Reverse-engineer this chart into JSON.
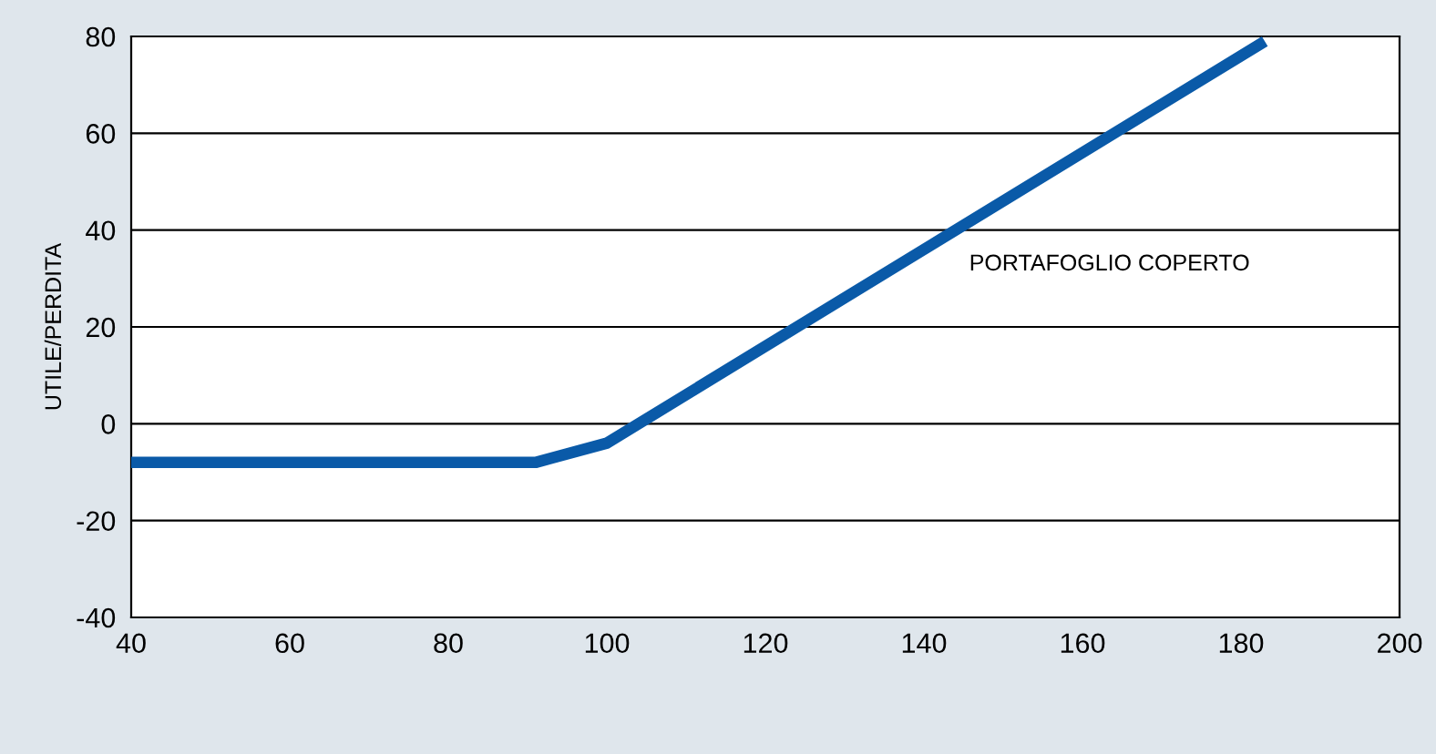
{
  "chart_data": {
    "type": "line",
    "ylabel": "UTILE/PERDITA",
    "x": [
      40,
      91,
      100,
      183
    ],
    "series": [
      {
        "name": "PORTAFOGLIO COPERTO",
        "color": "#0a5aa8",
        "values": [
          -8,
          -8,
          -4,
          79
        ]
      }
    ],
    "xlim": [
      40,
      200
    ],
    "xticks": [
      40,
      60,
      80,
      100,
      120,
      140,
      160,
      180,
      200
    ],
    "ylim": [
      -40,
      80
    ],
    "yticks": [
      -40,
      -20,
      0,
      20,
      40,
      60,
      80
    ],
    "grid": "y",
    "legend": false,
    "marker": "none",
    "line_style": "solid"
  }
}
